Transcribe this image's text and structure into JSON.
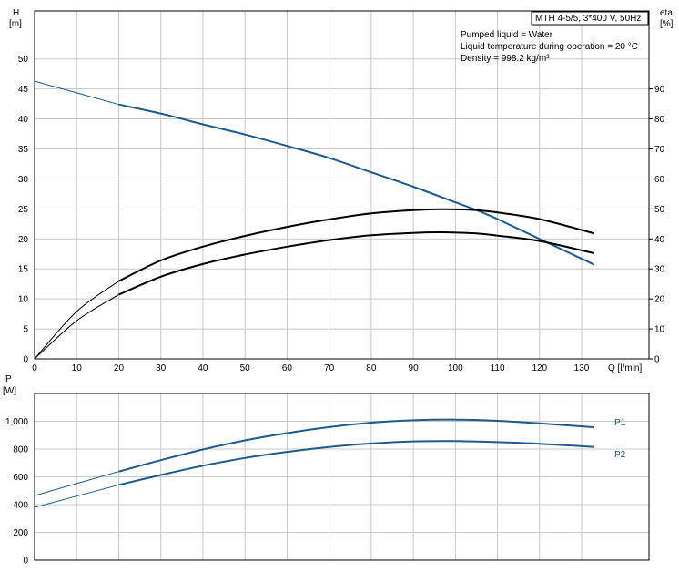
{
  "colors": {
    "accent": "#1f5a8c",
    "grid": "#c8c8c8",
    "axis": "#000000"
  },
  "chart_data": [
    {
      "type": "line",
      "name": "head-efficiency",
      "legend_box": "MTH 4-5/5, 3*400 V, 50Hz",
      "info_lines": [
        "Pumped liquid = Water",
        "Liquid temperature during operation = 20 °C",
        "Density = 998.2 kg/m³"
      ],
      "xlabel": "Q [l/min]",
      "xlim": [
        0,
        146
      ],
      "xticks": [
        0,
        10,
        20,
        30,
        40,
        50,
        60,
        70,
        80,
        90,
        100,
        110,
        120,
        130
      ],
      "ylabel_left": {
        "symbol": "H",
        "unit": "[m]"
      },
      "ylim_left": [
        0,
        58
      ],
      "yticks_left": [
        0,
        5,
        10,
        15,
        20,
        25,
        30,
        35,
        40,
        45,
        50
      ],
      "ylabel_right": {
        "symbol": "eta",
        "unit": "[%]"
      },
      "ylim_right": [
        0,
        116
      ],
      "yticks_right": [
        0,
        10,
        20,
        30,
        40,
        50,
        60,
        70,
        80,
        90
      ],
      "series": [
        {
          "axis": "left",
          "color": "#1f5a8c",
          "x": [
            0,
            20,
            30,
            40,
            50,
            60,
            70,
            80,
            90,
            100,
            105,
            110,
            120,
            133
          ],
          "y": [
            46.3,
            42.4,
            40.9,
            39.1,
            37.4,
            35.5,
            33.5,
            31.1,
            28.7,
            26.1,
            24.8,
            23.3,
            20.0,
            15.7
          ]
        },
        {
          "axis": "right",
          "color": "#000000",
          "x": [
            0,
            10,
            20,
            30,
            40,
            50,
            60,
            70,
            80,
            90,
            97,
            105,
            110,
            120,
            133
          ],
          "y": [
            0,
            15.8,
            25.9,
            32.8,
            37.4,
            41.0,
            44.0,
            46.5,
            48.5,
            49.6,
            49.9,
            49.6,
            48.8,
            46.6,
            41.8
          ]
        },
        {
          "axis": "right",
          "color": "#000000",
          "x": [
            0,
            10,
            20,
            30,
            40,
            50,
            60,
            70,
            80,
            90,
            97,
            105,
            110,
            120,
            133
          ],
          "y": [
            0,
            12.7,
            21.4,
            27.4,
            31.6,
            34.8,
            37.4,
            39.6,
            41.2,
            42.0,
            42.2,
            41.8,
            41.1,
            39.3,
            35.2
          ]
        }
      ]
    },
    {
      "type": "line",
      "name": "power",
      "ylabel": {
        "symbol": "P",
        "unit": "[W]"
      },
      "xlim": [
        0,
        146
      ],
      "xticks": [
        0,
        10,
        20,
        30,
        40,
        50,
        60,
        70,
        80,
        90,
        100,
        110,
        120,
        130
      ],
      "ylim": [
        0,
        1200
      ],
      "yticks": [
        0,
        200,
        400,
        600,
        800,
        1000
      ],
      "ytick_labels": [
        "0",
        "200",
        "400",
        "600",
        "800",
        "1,000"
      ],
      "series": [
        {
          "name": "P1",
          "color": "#1f5a8c",
          "x": [
            0,
            20,
            30,
            40,
            50,
            60,
            70,
            80,
            90,
            100,
            110,
            120,
            133
          ],
          "y": [
            465,
            638,
            720,
            797,
            862,
            915,
            958,
            990,
            1007,
            1012,
            1003,
            985,
            957
          ]
        },
        {
          "name": "P2",
          "color": "#1f5a8c",
          "x": [
            0,
            20,
            30,
            40,
            50,
            60,
            70,
            80,
            90,
            100,
            110,
            120,
            133
          ],
          "y": [
            380,
            542,
            613,
            680,
            736,
            780,
            815,
            840,
            855,
            857,
            850,
            838,
            815
          ]
        }
      ]
    }
  ]
}
